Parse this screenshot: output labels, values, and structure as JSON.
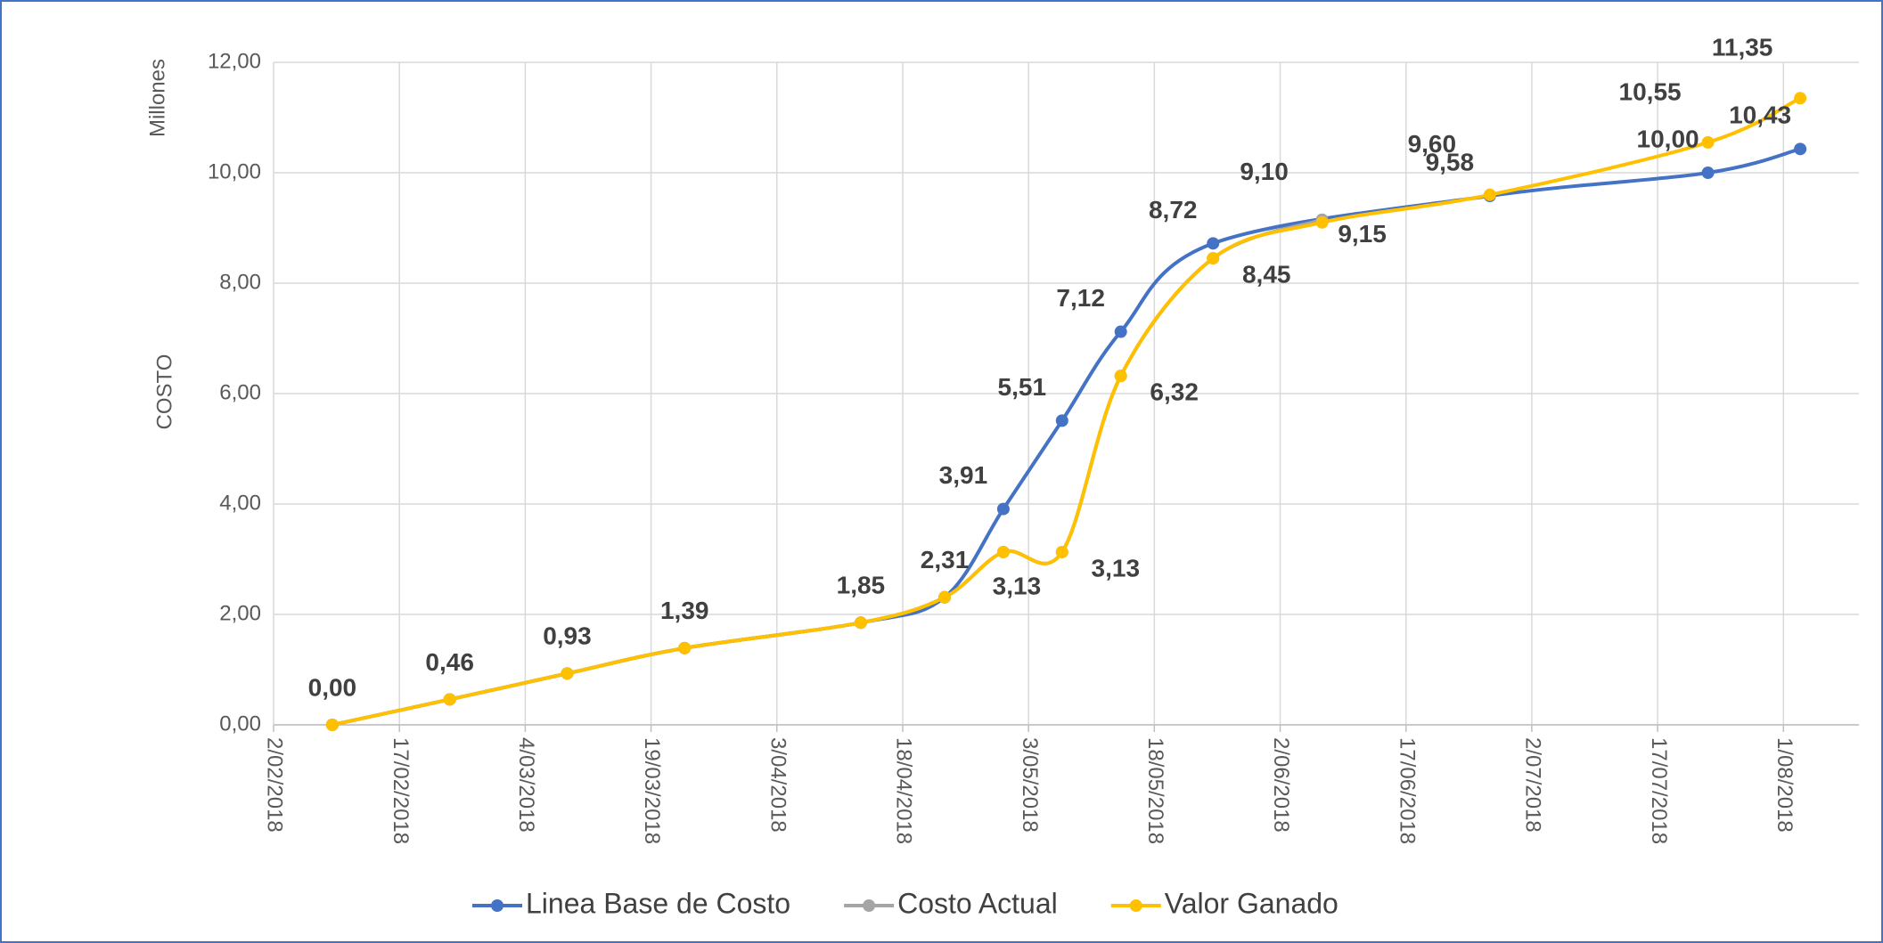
{
  "chart_data": {
    "type": "line",
    "y_label": "COSTO",
    "y_unit_label": "Millones",
    "xlim": [
      "2018-02-02",
      "2018-08-10"
    ],
    "xticks": [
      {
        "value": "2018-02-02",
        "label": "2/02/2018"
      },
      {
        "value": "2018-02-17",
        "label": "17/02/2018"
      },
      {
        "value": "2018-03-04",
        "label": "4/03/2018"
      },
      {
        "value": "2018-03-19",
        "label": "19/03/2018"
      },
      {
        "value": "2018-04-03",
        "label": "3/04/2018"
      },
      {
        "value": "2018-04-18",
        "label": "18/04/2018"
      },
      {
        "value": "2018-05-03",
        "label": "3/05/2018"
      },
      {
        "value": "2018-05-18",
        "label": "18/05/2018"
      },
      {
        "value": "2018-06-02",
        "label": "2/06/2018"
      },
      {
        "value": "2018-06-17",
        "label": "17/06/2018"
      },
      {
        "value": "2018-07-02",
        "label": "2/07/2018"
      },
      {
        "value": "2018-07-17",
        "label": "17/07/2018"
      },
      {
        "value": "2018-08-01",
        "label": "1/08/2018"
      }
    ],
    "ylim": [
      0,
      12
    ],
    "yticks": [
      {
        "value": 0,
        "label": "0,00"
      },
      {
        "value": 2,
        "label": "2,00"
      },
      {
        "value": 4,
        "label": "4,00"
      },
      {
        "value": 6,
        "label": "6,00"
      },
      {
        "value": 8,
        "label": "8,00"
      },
      {
        "value": 10,
        "label": "10,00"
      },
      {
        "value": 12,
        "label": "12,00"
      }
    ],
    "grid": true,
    "series": [
      {
        "name": "Linea Base de Costo",
        "color": "#4472c4",
        "x": [
          "2018-02-09",
          "2018-02-23",
          "2018-03-09",
          "2018-03-23",
          "2018-04-13",
          "2018-04-23",
          "2018-04-30",
          "2018-05-07",
          "2018-05-14",
          "2018-05-25",
          "2018-06-27",
          "2018-07-23",
          "2018-08-03"
        ],
        "values": [
          0,
          0.46,
          0.93,
          1.39,
          1.85,
          2.31,
          3.91,
          5.51,
          7.12,
          8.72,
          9.58,
          10.0,
          10.43
        ],
        "value_labels": [
          null,
          null,
          null,
          null,
          null,
          null,
          "3,91",
          "5,51",
          "7,12",
          "8,72",
          "9,58",
          "10,00",
          "10,43"
        ]
      },
      {
        "name": "Costo Actual",
        "color": "#a5a5a5",
        "x": [
          "2018-02-09",
          "2018-02-23",
          "2018-03-09",
          "2018-03-23",
          "2018-04-13",
          "2018-04-23",
          "2018-04-30",
          "2018-05-07",
          "2018-05-14",
          "2018-05-25",
          "2018-06-07"
        ],
        "values": [
          0,
          0.46,
          0.93,
          1.39,
          1.85,
          2.31,
          3.13,
          3.13,
          6.32,
          8.45,
          9.15
        ],
        "value_labels": [
          null,
          null,
          null,
          null,
          null,
          null,
          null,
          null,
          null,
          null,
          "9,15"
        ]
      },
      {
        "name": "Valor Ganado",
        "color": "#ffc000",
        "x": [
          "2018-02-09",
          "2018-02-23",
          "2018-03-09",
          "2018-03-23",
          "2018-04-13",
          "2018-04-23",
          "2018-04-30",
          "2018-05-07",
          "2018-05-14",
          "2018-05-25",
          "2018-06-07",
          "2018-06-27",
          "2018-07-23",
          "2018-08-03"
        ],
        "values": [
          0,
          0.46,
          0.93,
          1.39,
          1.85,
          2.31,
          3.13,
          3.13,
          6.32,
          8.45,
          9.1,
          9.6,
          10.55,
          11.35
        ],
        "value_labels": [
          "0,00",
          "0,46",
          "0,93",
          "1,39",
          "1,85",
          "2,31",
          "3,13",
          "3,13",
          "6,32",
          "8,45",
          "9,10",
          "9,60",
          "10,55",
          "11,35"
        ]
      }
    ]
  }
}
